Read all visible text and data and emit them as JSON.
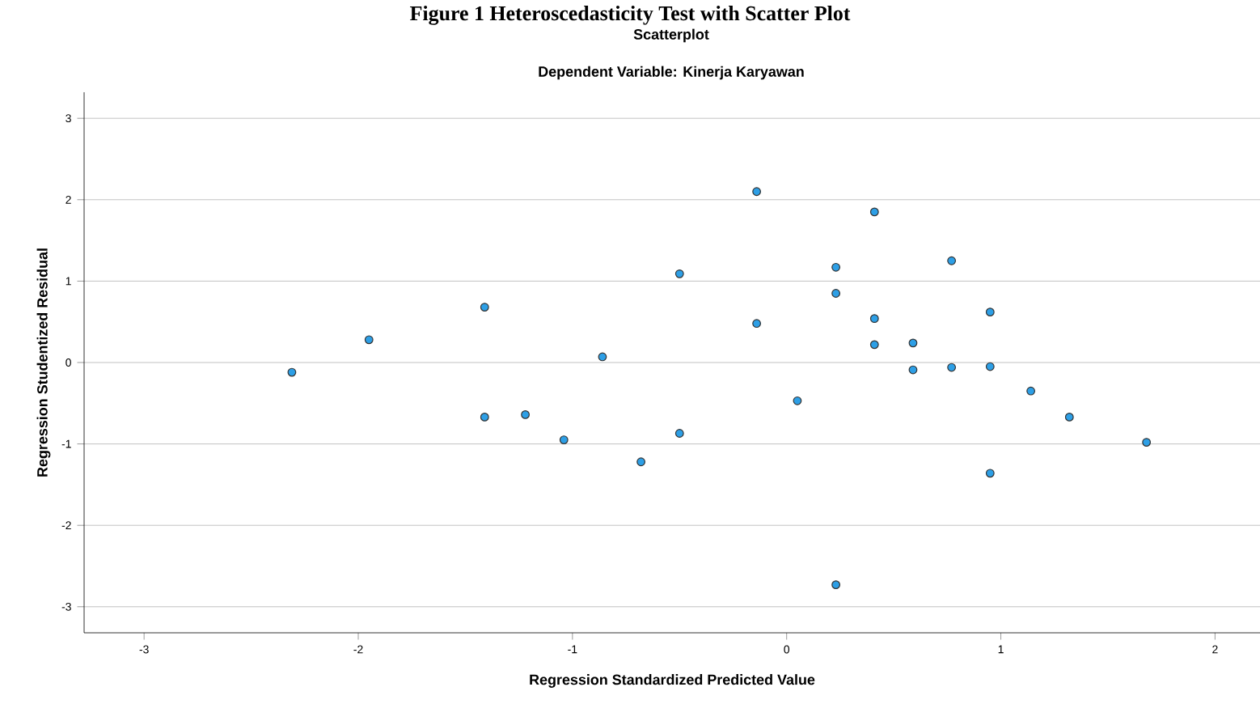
{
  "chart_data": {
    "type": "scatter",
    "title": "Scatterplot",
    "subtitle": "Dependent Variable: Kinerja Karyawan",
    "annotations": [
      "Figure 1 Heteroscedasticity Test with Scatter Plot"
    ],
    "xlabel": "Regression Standardized Predicted Value",
    "ylabel": "Regression Studentized Residual",
    "xlim": [
      -3.28,
      2.21
    ],
    "ylim": [
      -3.32,
      3.32
    ],
    "xticks": [
      -3,
      -2,
      -1,
      0,
      1,
      2
    ],
    "yticks": [
      -3,
      -2,
      -1,
      0,
      1,
      2,
      3
    ],
    "grid": "y",
    "marker": "circle",
    "series": [
      {
        "color": "#2d9fe6",
        "x": [
          -2.31,
          -1.95,
          -1.41,
          -1.41,
          -1.22,
          -1.04,
          -0.86,
          -0.68,
          -0.5,
          -0.5,
          -0.14,
          -0.14,
          0.05,
          0.23,
          0.23,
          0.23,
          0.41,
          0.41,
          0.41,
          0.59,
          0.59,
          0.77,
          0.77,
          0.95,
          0.95,
          0.95,
          1.14,
          1.32,
          1.68
        ],
        "values": [
          -0.12,
          0.28,
          0.68,
          -0.67,
          -0.64,
          -0.95,
          0.07,
          -1.22,
          1.09,
          -0.87,
          2.1,
          0.48,
          -0.47,
          1.17,
          0.85,
          -2.73,
          1.85,
          0.54,
          0.22,
          0.24,
          -0.09,
          1.25,
          -0.06,
          0.62,
          -0.05,
          -1.36,
          -0.35,
          -0.67,
          -0.98
        ]
      }
    ]
  }
}
